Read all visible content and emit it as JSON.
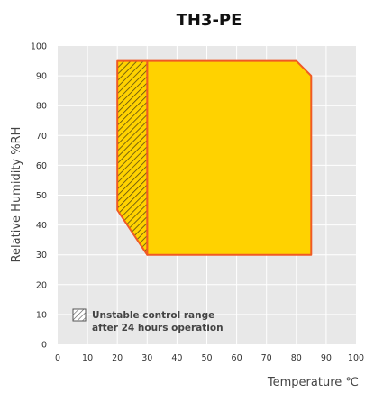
{
  "chart_data": {
    "type": "area",
    "title": "TH3-PE",
    "xlabel": "Temperature ℃",
    "ylabel": "Relative Humidity %RH",
    "xlim": [
      0,
      100
    ],
    "ylim": [
      0,
      100
    ],
    "xticks": [
      "0",
      "10",
      "20",
      "30",
      "40",
      "50",
      "60",
      "70",
      "80",
      "90",
      "100"
    ],
    "yticks": [
      "0",
      "10",
      "20",
      "30",
      "40",
      "50",
      "60",
      "70",
      "80",
      "90",
      "100"
    ],
    "grid": true,
    "series": [
      {
        "name": "",
        "x": [
          30,
          80,
          85,
          85,
          30
        ],
        "y": [
          95,
          95,
          90,
          30,
          30
        ]
      },
      {
        "name": "Unstable control range after 24 hours operation",
        "x": [
          20,
          30,
          30,
          20
        ],
        "y": [
          95,
          95,
          30,
          45
        ]
      }
    ],
    "legend": {
      "position": "bottom-left",
      "lines": [
        "Unstable control range",
        "after 24 hours operation"
      ]
    },
    "colors": {
      "fill": "#FFD200",
      "outline": "#F05A24",
      "hatch": "#5a4a10",
      "plot_bg": "#E8E8E8",
      "grid": "#FFFFFF"
    }
  }
}
